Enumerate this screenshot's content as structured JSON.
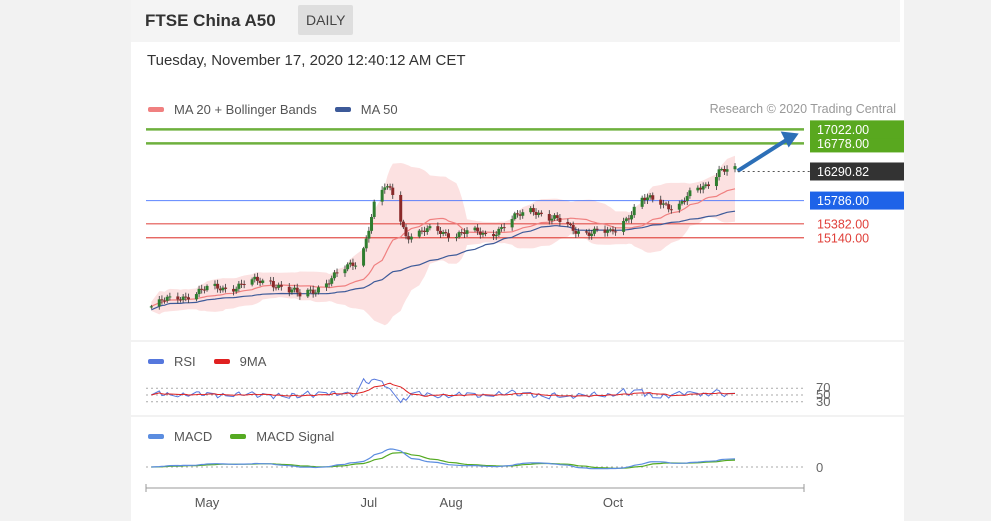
{
  "header": {
    "title": "FTSE China A50",
    "period": "DAILY"
  },
  "datetime": "Tuesday, November 17, 2020 12:40:12 AM CET",
  "credit": "Research © 2020 Trading Central",
  "legends": {
    "main": [
      {
        "label": "MA 20 + Bollinger Bands",
        "color": "#f08080"
      },
      {
        "label": "MA 50",
        "color": "#3d5a99"
      }
    ],
    "rsi": [
      {
        "label": "RSI",
        "color": "#5577dd"
      },
      {
        "label": "9MA",
        "color": "#e02020"
      }
    ],
    "macd": [
      {
        "label": "MACD",
        "color": "#5b8de0"
      },
      {
        "label": "MACD Signal",
        "color": "#55aa22"
      }
    ]
  },
  "chart_data": [
    {
      "type": "candlestick",
      "ylim": [
        13400,
        17150
      ],
      "levels": [
        {
          "label": "17022.00",
          "value": 17022,
          "color": "#5fa82a"
        },
        {
          "label": "16778.00",
          "value": 16778,
          "color": "#5fa82a"
        },
        {
          "label": "15786.00",
          "value": 15786,
          "color": "#3366ff"
        },
        {
          "label": "15382.00",
          "value": 15382,
          "color": "#e0403a"
        },
        {
          "label": "15140.00",
          "value": 15140,
          "color": "#e0403a"
        }
      ],
      "last_price": {
        "label": "16290.82",
        "value": 16290.82
      },
      "anchors": [
        {
          "date": "2020-04-10",
          "close": 13950
        },
        {
          "date": "2020-04-25",
          "close": 14180
        },
        {
          "date": "2020-05-10",
          "close": 14300
        },
        {
          "date": "2020-05-25",
          "close": 14400
        },
        {
          "date": "2020-06-05",
          "close": 14120
        },
        {
          "date": "2020-06-20",
          "close": 14500
        },
        {
          "date": "2020-06-25",
          "close": 14700
        },
        {
          "date": "2020-06-28",
          "close": 14800
        },
        {
          "date": "2020-07-03",
          "close": 15700
        },
        {
          "date": "2020-07-07",
          "close": 16000
        },
        {
          "date": "2020-07-10",
          "close": 15900
        },
        {
          "date": "2020-07-15",
          "close": 15200
        },
        {
          "date": "2020-07-25",
          "close": 15250
        },
        {
          "date": "2020-08-15",
          "close": 15200
        },
        {
          "date": "2020-09-01",
          "close": 15650
        },
        {
          "date": "2020-09-15",
          "close": 15300
        },
        {
          "date": "2020-09-30",
          "close": 15200
        },
        {
          "date": "2020-10-12",
          "close": 15800
        },
        {
          "date": "2020-10-25",
          "close": 15700
        },
        {
          "date": "2020-11-05",
          "close": 16050
        },
        {
          "date": "2020-11-10",
          "close": 16350
        },
        {
          "date": "2020-11-16",
          "close": 16290
        }
      ],
      "forecast_arrow": {
        "from": {
          "date": "2020-11-17",
          "value": 16300
        },
        "to": {
          "date": "2020-12-10",
          "value": 16950
        }
      }
    },
    {
      "type": "line",
      "name": "rsi-panel",
      "levels": [
        {
          "label": "70",
          "value": 70
        },
        {
          "label": "50",
          "value": 50
        },
        {
          "label": "30",
          "value": 30
        }
      ],
      "ylim": [
        0,
        100
      ]
    },
    {
      "type": "line",
      "name": "macd-panel",
      "levels": [
        {
          "label": "0",
          "value": 0
        }
      ]
    }
  ],
  "xaxis": {
    "ticks": [
      {
        "label": "May",
        "date": "2020-05-01"
      },
      {
        "label": "Jul",
        "date": "2020-07-01"
      },
      {
        "label": "Aug",
        "date": "2020-08-01"
      },
      {
        "label": "Oct",
        "date": "2020-10-01"
      }
    ]
  }
}
